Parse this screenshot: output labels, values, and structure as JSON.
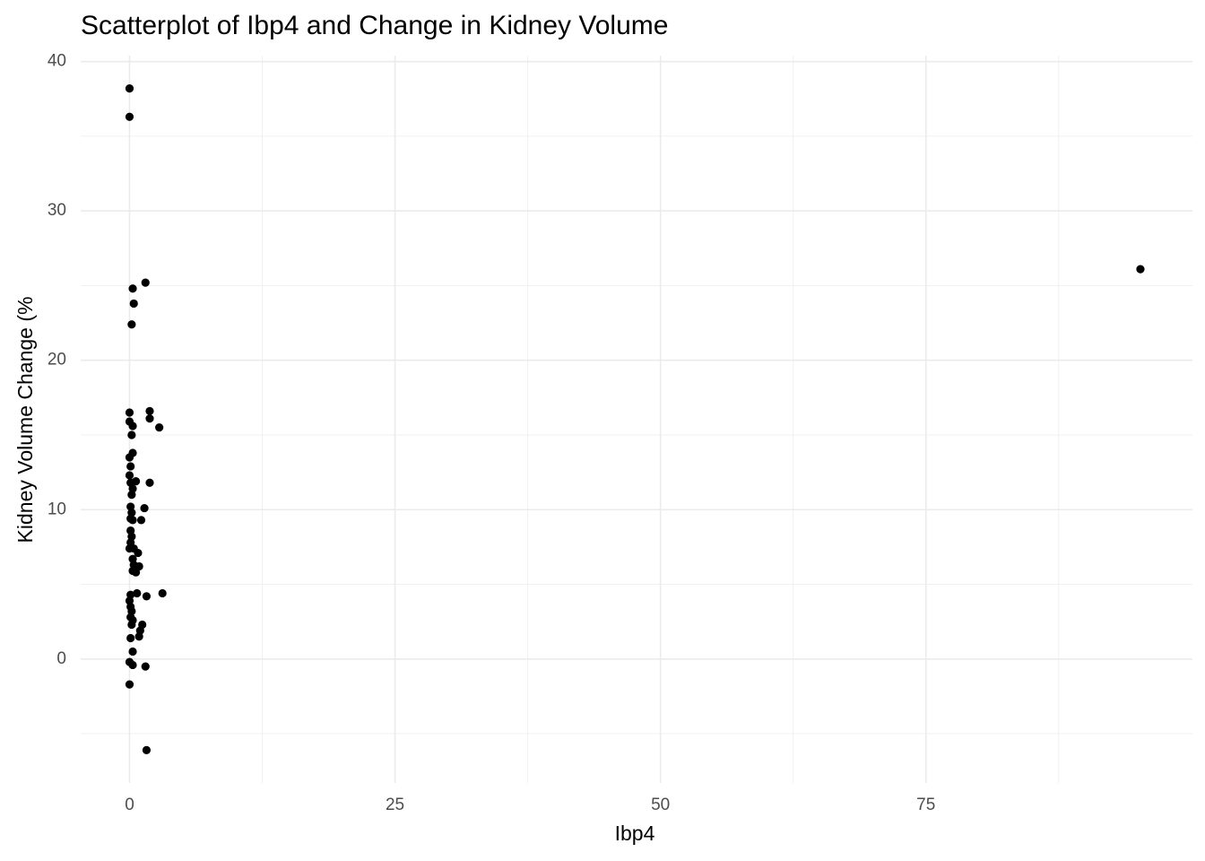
{
  "chart_data": {
    "type": "scatter",
    "title": "Scatterplot of Ibp4 and Change in Kidney Volume",
    "x_label": "Ibp4",
    "y_label": "Kidney Volume Change (%",
    "color": "#000000",
    "grid": true,
    "xlim": [
      -4.6,
      100.1
    ],
    "ylim": [
      -8.3,
      40.4
    ],
    "xticks": [
      0,
      25,
      50,
      75
    ],
    "yticks": [
      0,
      10,
      20,
      30,
      40
    ],
    "xminor": [
      12.5,
      37.5,
      62.5,
      87.5
    ],
    "yminor": [
      -5,
      5,
      15,
      25,
      35
    ],
    "x": [
      0,
      0,
      0.3,
      1.5,
      0.4,
      0.2,
      0,
      1.9,
      1.9,
      0,
      0.3,
      2.8,
      0.2,
      0.3,
      0,
      0.1,
      0,
      0.1,
      0.6,
      1.9,
      0.3,
      0.2,
      0.1,
      1.4,
      0.2,
      0.1,
      1.1,
      0.3,
      0.1,
      0.2,
      0.1,
      0,
      0.4,
      0.8,
      0.3,
      0.4,
      0.9,
      0.3,
      0.6,
      0.7,
      3.1,
      1.6,
      0.1,
      0,
      0.1,
      0.2,
      0.1,
      0.3,
      0.2,
      1.2,
      1.0,
      0.9,
      0.1,
      0.3,
      0,
      0.3,
      1.5,
      0,
      1.6,
      95.2
    ],
    "values": [
      38.2,
      36.3,
      24.8,
      25.2,
      23.8,
      22.4,
      16.5,
      16.6,
      16.1,
      15.9,
      15.6,
      15.5,
      15.0,
      13.8,
      13.5,
      12.9,
      12.3,
      11.8,
      11.9,
      11.8,
      11.4,
      11.0,
      10.2,
      10.1,
      9.8,
      9.4,
      9.3,
      9.3,
      8.6,
      8.2,
      7.8,
      7.4,
      7.4,
      7.1,
      6.7,
      6.3,
      6.2,
      5.9,
      5.8,
      4.4,
      4.4,
      4.2,
      4.3,
      3.9,
      3.5,
      3.2,
      2.8,
      2.6,
      2.3,
      2.3,
      1.9,
      1.5,
      1.4,
      0.5,
      -0.2,
      -0.4,
      -0.5,
      -1.7,
      -6.1,
      26.1
    ]
  }
}
